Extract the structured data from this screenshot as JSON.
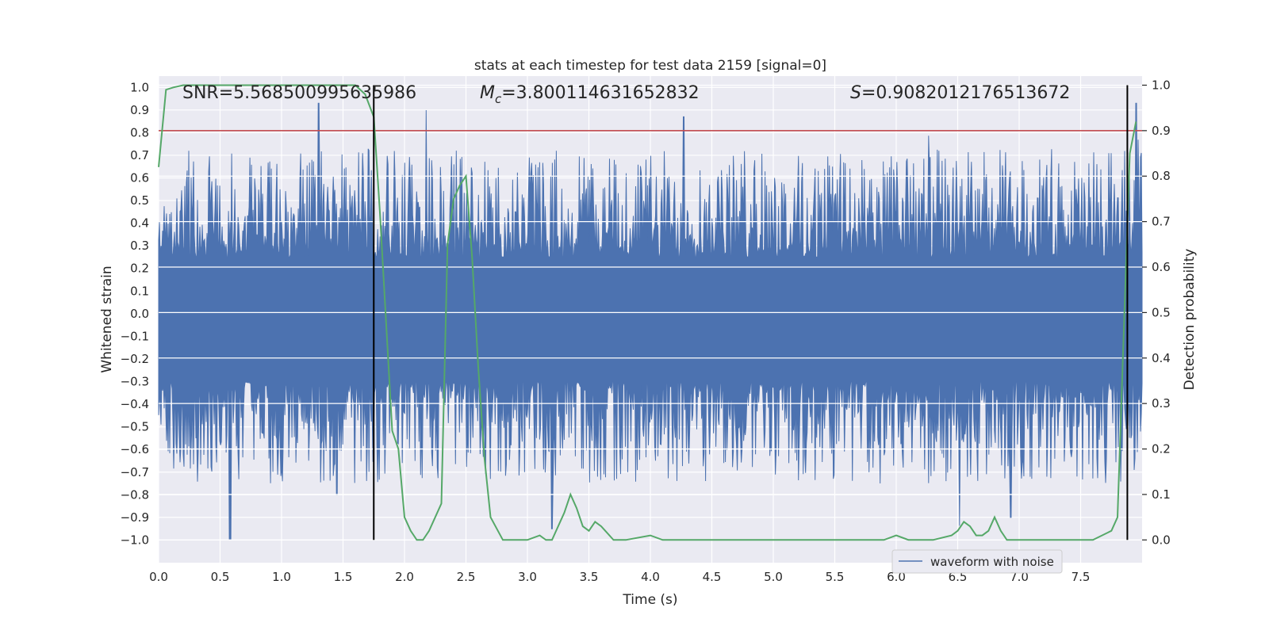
{
  "chart_data": {
    "type": "line",
    "title": "stats at each timestep for test data 2159 [signal=0]",
    "xlabel": "Time (s)",
    "ylabel_left": "Whitened strain",
    "ylabel_right": "Detection probability",
    "xlim": [
      0.0,
      8.0
    ],
    "ylim_left": [
      -1.1,
      1.05
    ],
    "ylim_right": [
      -0.05,
      1.02
    ],
    "x_ticks": [
      "0.0",
      "0.5",
      "1.0",
      "1.5",
      "2.0",
      "2.5",
      "3.0",
      "3.5",
      "4.0",
      "4.5",
      "5.0",
      "5.5",
      "6.0",
      "6.5",
      "7.0",
      "7.5"
    ],
    "y_left_ticks": [
      "1.0",
      "0.9",
      "0.8",
      "0.7",
      "0.6",
      "0.5",
      "0.4",
      "0.3",
      "0.2",
      "0.1",
      "0.0",
      "-0.1",
      "-0.2",
      "-0.3",
      "-0.4",
      "-0.5",
      "-0.6",
      "-0.7",
      "-0.8",
      "-0.9",
      "-1.0"
    ],
    "y_right_ticks": [
      "1.0",
      "0.9",
      "0.8",
      "0.7",
      "0.6",
      "0.5",
      "0.4",
      "0.3",
      "0.2",
      "0.1",
      "0.0"
    ],
    "grid": true,
    "stats": {
      "snr_label": "SNR=5.568500995635986",
      "mc_prefix": "M",
      "mc_sub": "c",
      "mc_value": "=3.800114631652832",
      "s_prefix": "S",
      "s_value": "=0.9082012176513672"
    },
    "threshold": 0.9,
    "vertical_markers": [
      1.75,
      7.88
    ],
    "legend": [
      "waveform with noise"
    ],
    "legend_position": "lower-right",
    "series": [
      {
        "name": "waveform with noise",
        "axis": "left",
        "color": "#4c72b0",
        "envelope_upper": 0.25,
        "envelope_lower": -0.3,
        "noise_seed": 2159,
        "peaks": [
          [
            0.58,
            -1.0
          ],
          [
            1.3,
            0.93
          ],
          [
            1.45,
            -0.8
          ],
          [
            3.2,
            -0.95
          ],
          [
            4.27,
            0.87
          ],
          [
            6.93,
            -0.9
          ],
          [
            7.95,
            0.93
          ]
        ]
      },
      {
        "name": "detection probability",
        "axis": "right",
        "color": "#55a868",
        "x": [
          0.0,
          0.06,
          0.12,
          0.2,
          0.3,
          0.5,
          0.8,
          1.0,
          1.2,
          1.4,
          1.6,
          1.68,
          1.75,
          1.8,
          1.9,
          1.95,
          2.0,
          2.05,
          2.1,
          2.15,
          2.2,
          2.3,
          2.35,
          2.4,
          2.45,
          2.5,
          2.55,
          2.6,
          2.65,
          2.7,
          2.8,
          2.85,
          3.0,
          3.1,
          3.15,
          3.2,
          3.3,
          3.35,
          3.4,
          3.45,
          3.5,
          3.55,
          3.6,
          3.7,
          3.8,
          4.0,
          4.1,
          4.2,
          4.5,
          4.8,
          5.0,
          5.5,
          5.8,
          5.9,
          6.0,
          6.1,
          6.3,
          6.45,
          6.5,
          6.55,
          6.6,
          6.65,
          6.7,
          6.75,
          6.8,
          6.85,
          6.9,
          7.0,
          7.5,
          7.6,
          7.75,
          7.8,
          7.9,
          7.95
        ],
        "values": [
          0.82,
          0.99,
          0.995,
          1.0,
          1.0,
          1.0,
          1.0,
          1.0,
          1.0,
          1.0,
          1.0,
          0.98,
          0.93,
          0.72,
          0.24,
          0.2,
          0.05,
          0.02,
          0.0,
          0.0,
          0.02,
          0.08,
          0.65,
          0.75,
          0.78,
          0.8,
          0.62,
          0.38,
          0.18,
          0.05,
          0.0,
          0.0,
          0.0,
          0.01,
          0.0,
          0.0,
          0.06,
          0.1,
          0.07,
          0.03,
          0.02,
          0.04,
          0.03,
          0.0,
          0.0,
          0.01,
          0.0,
          0.0,
          0.0,
          0.0,
          0.0,
          0.0,
          0.0,
          0.0,
          0.01,
          0.0,
          0.0,
          0.01,
          0.02,
          0.04,
          0.03,
          0.01,
          0.01,
          0.02,
          0.05,
          0.02,
          0.0,
          0.0,
          0.0,
          0.0,
          0.02,
          0.05,
          0.85,
          0.92
        ]
      }
    ]
  }
}
